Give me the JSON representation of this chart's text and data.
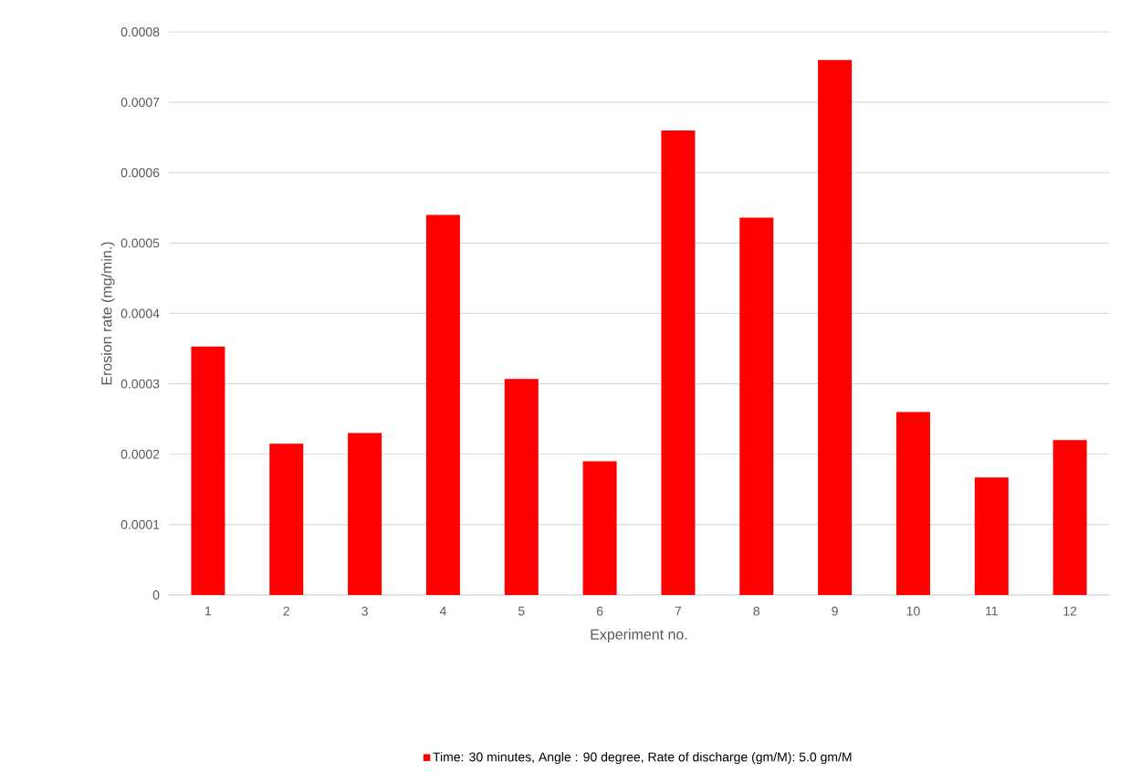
{
  "chart_data": {
    "type": "bar",
    "xlabel": "Experiment no.",
    "ylabel": "Erosion rate (mg/min.)",
    "categories": [
      "1",
      "2",
      "3",
      "4",
      "5",
      "6",
      "7",
      "8",
      "9",
      "10",
      "11",
      "12"
    ],
    "series": [
      {
        "name": "Time: 30 minutes,   Angle : 90 degree,   Rate of discharge (gm/M): 5.0 gm/M",
        "color": "#ff0000",
        "values": [
          0.000353,
          0.000215,
          0.00023,
          0.00054,
          0.000307,
          0.00019,
          0.00066,
          0.000536,
          0.00076,
          0.00026,
          0.000167,
          0.00022
        ]
      }
    ],
    "ylim": [
      0,
      0.0008
    ],
    "yticks": [
      0,
      0.0001,
      0.0002,
      0.0003,
      0.0004,
      0.0005,
      0.0006,
      0.0007,
      0.0008
    ],
    "grid": "y",
    "legend": "bottom"
  }
}
